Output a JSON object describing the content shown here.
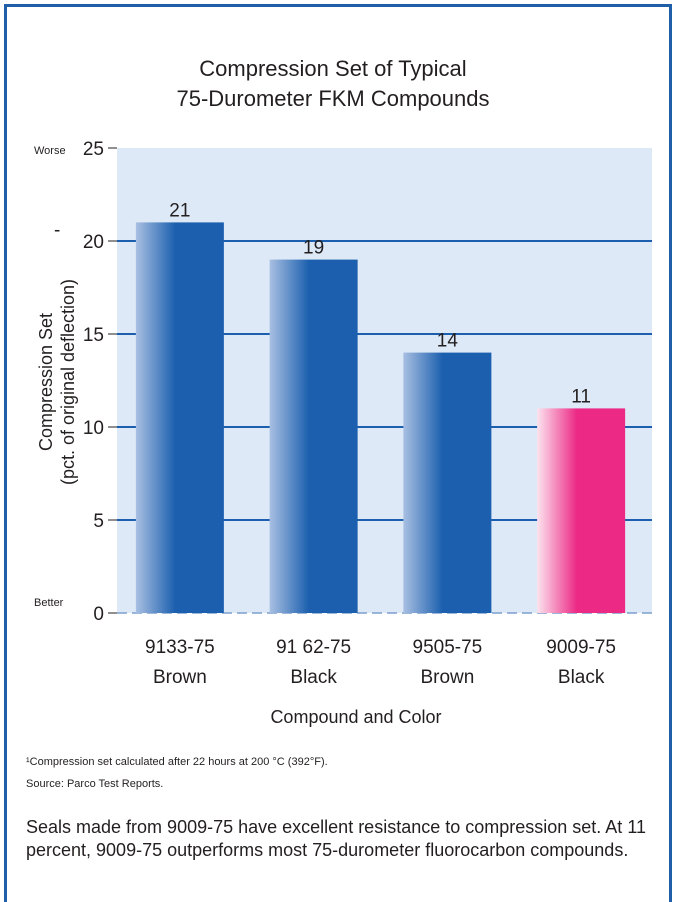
{
  "chart_data": {
    "type": "bar",
    "title": "Compression Set of Typical",
    "subtitle": "75-Durometer FKM Compounds",
    "categories": [
      [
        "9133-75",
        "Brown"
      ],
      [
        "91 62-75",
        "Black"
      ],
      [
        "9505-75",
        "Brown"
      ],
      [
        "9009-75",
        "Black"
      ]
    ],
    "values": [
      21,
      19,
      14,
      11
    ],
    "value_labels": [
      "21",
      "19",
      "14",
      "11"
    ],
    "bar_colors": [
      "#1b5fae",
      "#1b5fae",
      "#1b5fae",
      "#ec2a86"
    ],
    "ylim": [
      0,
      25
    ],
    "yticks": [
      "0",
      "5",
      "10",
      "15",
      "20",
      "25"
    ],
    "ylabel_lines": [
      "Compression Set",
      "(pct. of original deflection)"
    ],
    "xlabel": "Compound and Color",
    "y_top_note": "Worse",
    "y_bottom_note": "Better",
    "y_tick_mark": "-",
    "grid": true,
    "colors": {
      "plot_background": "#dde9f6",
      "gridline": "#1b5fae",
      "border": "#1f5fa8"
    }
  },
  "footnotes": {
    "note1": "¹Compression set calculated after 22 hours at 200 °C (392°F).",
    "note2": "Source: Parco Test Reports."
  },
  "caption": "Seals made from 9009-75 have excellent resistance to compression set. At 11 percent, 9009-75 outperforms most 75-durometer fluorocarbon compounds."
}
